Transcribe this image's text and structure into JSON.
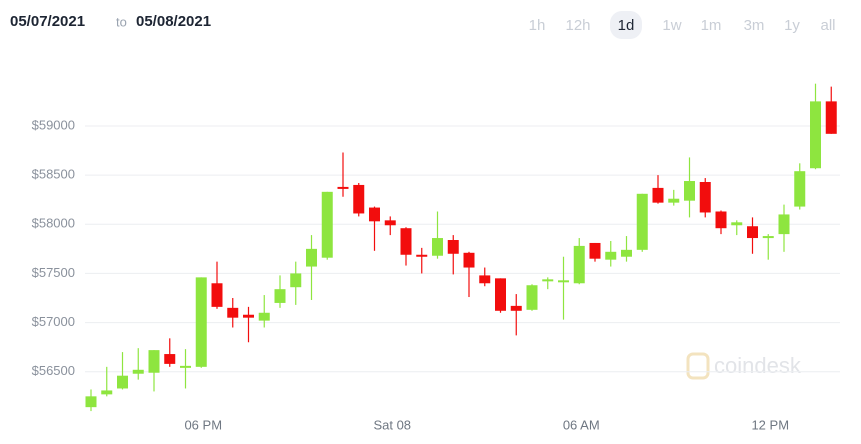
{
  "header": {
    "from": "05/07/2021",
    "separator": "to",
    "to": "05/08/2021",
    "ranges": [
      "1h",
      "12h",
      "1d",
      "1w",
      "1m",
      "3m",
      "1y",
      "all"
    ],
    "selected_range": "1d"
  },
  "chart_data": {
    "type": "candlestick",
    "watermark": "coindesk",
    "categories": [
      null,
      null,
      null,
      null,
      null,
      null,
      null,
      "06 PM",
      null,
      null,
      null,
      null,
      null,
      null,
      null,
      null,
      null,
      null,
      null,
      "Sat 08",
      null,
      null,
      null,
      null,
      null,
      null,
      null,
      null,
      null,
      null,
      null,
      "06 AM",
      null,
      null,
      null,
      null,
      null,
      null,
      null,
      null,
      null,
      null,
      null,
      "12 PM",
      null,
      null,
      null,
      null
    ],
    "open": [
      56140,
      56270,
      56330,
      56480,
      56490,
      56680,
      56550,
      56550,
      57400,
      57150,
      57080,
      57020,
      57200,
      57360,
      57570,
      57660,
      58380,
      58400,
      58170,
      58040,
      57960,
      57690,
      57680,
      57840,
      57710,
      57480,
      57450,
      57170,
      57130,
      57420,
      57430,
      57400,
      57810,
      57640,
      57670,
      57740,
      58370,
      58220,
      58240,
      58430,
      58130,
      57990,
      57980,
      57880,
      57900,
      58180,
      58570,
      59250
    ],
    "high": [
      56320,
      56550,
      56700,
      56740,
      56720,
      56840,
      56730,
      57460,
      57620,
      57250,
      57160,
      57280,
      57480,
      57620,
      57890,
      58330,
      58730,
      58420,
      58180,
      58080,
      57970,
      57760,
      58130,
      57890,
      57720,
      57560,
      57450,
      57290,
      57390,
      57460,
      57670,
      57860,
      57810,
      57830,
      57880,
      58310,
      58500,
      58350,
      58680,
      58470,
      58140,
      58040,
      58070,
      57900,
      58200,
      58620,
      59430,
      59400
    ],
    "low": [
      56100,
      56250,
      56320,
      56420,
      56300,
      56550,
      56330,
      56540,
      57140,
      56950,
      56800,
      56950,
      57150,
      57180,
      57230,
      57640,
      58280,
      58080,
      57730,
      57890,
      57580,
      57500,
      57650,
      57490,
      57260,
      57370,
      57100,
      56870,
      57120,
      57340,
      57030,
      57390,
      57620,
      57570,
      57620,
      57720,
      58210,
      58190,
      58070,
      58070,
      57900,
      57890,
      57700,
      57640,
      57720,
      58150,
      58560,
      58920
    ],
    "close": [
      56250,
      56310,
      56460,
      56520,
      56720,
      56580,
      56560,
      57460,
      57160,
      57050,
      57050,
      57100,
      57340,
      57500,
      57750,
      58330,
      58370,
      58110,
      58030,
      57990,
      57690,
      57680,
      57860,
      57700,
      57560,
      57400,
      57120,
      57120,
      57380,
      57440,
      57430,
      57780,
      57650,
      57720,
      57740,
      58310,
      58220,
      58260,
      58440,
      58120,
      57960,
      58020,
      57860,
      57880,
      58100,
      58540,
      59250,
      58920
    ],
    "up_color": "#8ee53f",
    "down_color": "#f20d0d",
    "ylim": [
      56050,
      59800
    ],
    "yticks": [
      {
        "value": 56500,
        "label": "$56500"
      },
      {
        "value": 57000,
        "label": "$57000"
      },
      {
        "value": 57500,
        "label": "$57500"
      },
      {
        "value": 58000,
        "label": "$58000"
      },
      {
        "value": 58500,
        "label": "$58500"
      },
      {
        "value": 59000,
        "label": "$59000"
      }
    ],
    "grid": true
  }
}
